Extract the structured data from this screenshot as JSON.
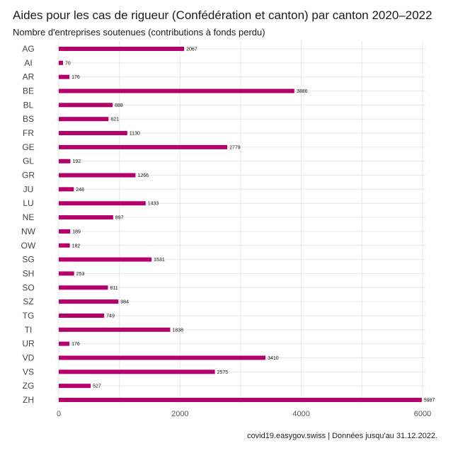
{
  "chart_data": {
    "type": "bar",
    "orientation": "horizontal",
    "title": "Aides pour les cas de rigueur (Confédération et canton) par canton 2020–2022",
    "subtitle": "Nombre d'entreprises soutenues (contributions à fonds perdu)",
    "caption": "covid19.easygov.swiss | Données jusqu'au 31.12.2022.",
    "categories": [
      "AG",
      "AI",
      "AR",
      "BE",
      "BL",
      "BS",
      "FR",
      "GE",
      "GL",
      "GR",
      "JU",
      "LU",
      "NE",
      "NW",
      "OW",
      "SG",
      "SH",
      "SO",
      "SZ",
      "TG",
      "TI",
      "UR",
      "VD",
      "VS",
      "ZG",
      "ZH"
    ],
    "values": [
      2067,
      70,
      176,
      3886,
      888,
      821,
      1130,
      2779,
      192,
      1266,
      248,
      1433,
      897,
      189,
      182,
      1531,
      253,
      811,
      984,
      749,
      1838,
      176,
      3410,
      2575,
      527,
      5987
    ],
    "xlim": [
      0,
      6000
    ],
    "xticks": [
      0,
      2000,
      4000,
      6000
    ],
    "bar_color": "#b5006b",
    "grid": true,
    "legend": "none"
  }
}
